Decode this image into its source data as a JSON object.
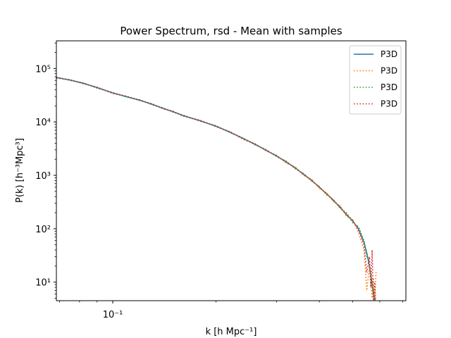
{
  "chart_data": {
    "type": "line",
    "title": "Power Spectrum, rsd - Mean with samples",
    "xlabel": "k [h Mpc⁻¹]",
    "ylabel": "P(k) [h⁻³Mpc³]",
    "xscale": "log",
    "yscale": "log",
    "xlim": [
      0.0685,
      0.715
    ],
    "ylim": [
      4.5,
      330000
    ],
    "x_ticks": [
      {
        "value": 0.1,
        "label": "10⁻¹"
      }
    ],
    "x_minor_ticks": [
      0.07,
      0.08,
      0.09,
      0.2,
      0.3,
      0.4,
      0.5,
      0.6,
      0.7
    ],
    "y_ticks": [
      {
        "value": 10,
        "label": "10¹"
      },
      {
        "value": 100,
        "label": "10²"
      },
      {
        "value": 1000,
        "label": "10³"
      },
      {
        "value": 10000,
        "label": "10⁴"
      },
      {
        "value": 100000,
        "label": "10⁵"
      }
    ],
    "grid": false,
    "legend_position": "top-right",
    "colors": {
      "C0": "#1f77b4",
      "C1": "#ff7f0e",
      "C2": "#2ca02c",
      "C3": "#d62728"
    },
    "x": [
      0.0685,
      0.075,
      0.082,
      0.09,
      0.1,
      0.11,
      0.12,
      0.13,
      0.14,
      0.15,
      0.16,
      0.18,
      0.2,
      0.22,
      0.24,
      0.26,
      0.28,
      0.3,
      0.32,
      0.34,
      0.36,
      0.38,
      0.4,
      0.42,
      0.44,
      0.46,
      0.48,
      0.5,
      0.52,
      0.54,
      0.55,
      0.56,
      0.565,
      0.57,
      0.575,
      0.58,
      0.585
    ],
    "series": [
      {
        "name": "P3D",
        "style": "solid",
        "color": "#1f77b4",
        "values": [
          68000,
          61000,
          53000,
          44000,
          35000,
          29500,
          25500,
          21500,
          18000,
          15500,
          13200,
          10500,
          8300,
          6400,
          4900,
          3800,
          2950,
          2300,
          1800,
          1380,
          1050,
          800,
          600,
          450,
          340,
          250,
          185,
          140,
          100,
          55,
          35,
          20,
          14,
          9,
          6,
          4.5,
          3
        ]
      },
      {
        "name": "P3D",
        "style": "dotted",
        "color": "#ff7f0e",
        "values": [
          66000,
          62000,
          52000,
          45000,
          34000,
          30000,
          25000,
          22000,
          17500,
          15900,
          12800,
          10800,
          8100,
          6600,
          4700,
          3900,
          2850,
          2400,
          1700,
          1450,
          1000,
          840,
          570,
          470,
          320,
          270,
          170,
          150,
          85,
          40,
          7,
          20,
          9,
          5,
          12,
          3,
          16
        ]
      },
      {
        "name": "P3D",
        "style": "dotted",
        "color": "#2ca02c",
        "values": [
          69000,
          60000,
          54000,
          43000,
          35500,
          29000,
          26000,
          21000,
          18400,
          15200,
          13500,
          10300,
          8500,
          6300,
          5000,
          3700,
          3050,
          2250,
          1850,
          1330,
          1080,
          780,
          620,
          430,
          350,
          240,
          200,
          130,
          110,
          60,
          30,
          25,
          12,
          8,
          7,
          5,
          4
        ]
      },
      {
        "name": "P3D",
        "style": "dotted",
        "color": "#d62728",
        "values": [
          67000,
          61500,
          52500,
          44500,
          34500,
          30200,
          25200,
          21800,
          17800,
          15700,
          13000,
          10600,
          8200,
          6500,
          4800,
          3850,
          2900,
          2350,
          1750,
          1400,
          1020,
          820,
          590,
          460,
          330,
          260,
          180,
          145,
          95,
          50,
          15,
          30,
          8,
          40,
          4,
          10,
          3
        ]
      }
    ]
  }
}
